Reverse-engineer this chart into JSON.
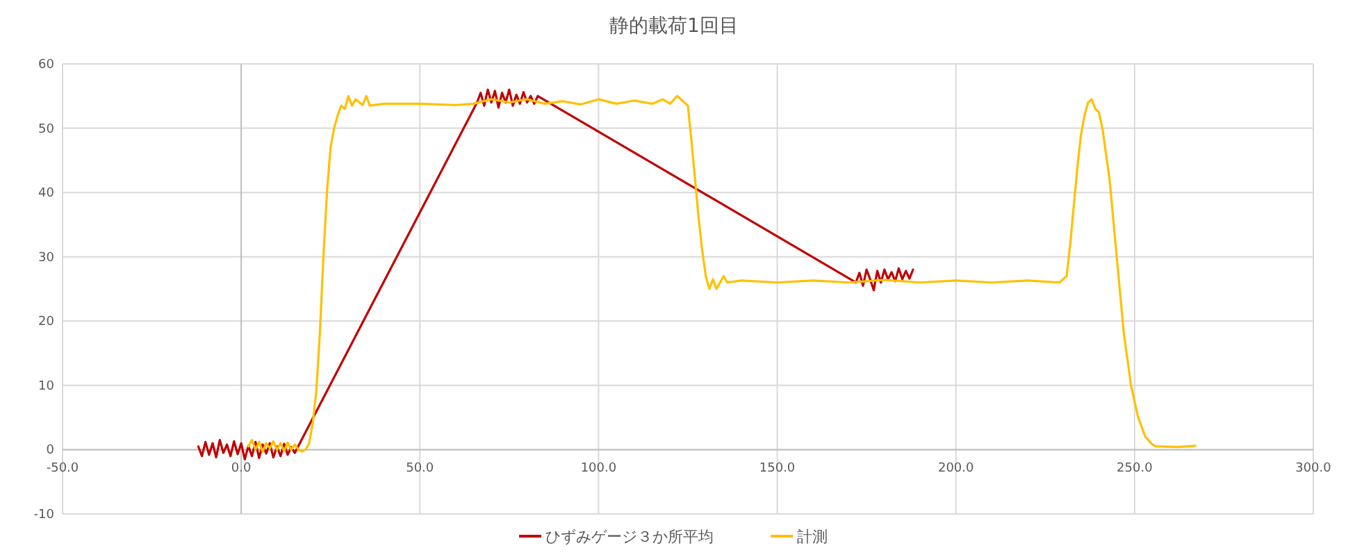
{
  "chart_data": {
    "type": "line",
    "title": "静的載荷1回目",
    "xlim": [
      -50,
      300
    ],
    "ylim": [
      -10,
      60
    ],
    "xticks": [
      {
        "value": -50,
        "label": "-50.0"
      },
      {
        "value": 0,
        "label": "0.0"
      },
      {
        "value": 50,
        "label": "50.0"
      },
      {
        "value": 100,
        "label": "100.0"
      },
      {
        "value": 150,
        "label": "150.0"
      },
      {
        "value": 200,
        "label": "200.0"
      },
      {
        "value": 250,
        "label": "250.0"
      },
      {
        "value": 300,
        "label": "300.0"
      }
    ],
    "yticks": [
      -10,
      0,
      10,
      20,
      30,
      40,
      50,
      60
    ],
    "grid": true,
    "legend": "bottom",
    "marker": "none",
    "line_style": "solid",
    "series": [
      {
        "name": "ひずみゲージ３か所平均",
        "color": "#c00000",
        "x": [
          -12,
          -11,
          -10,
          -9,
          -8,
          -7,
          -6,
          -5,
          -4,
          -3,
          -2,
          -1,
          0,
          1,
          2,
          3,
          4,
          5,
          6,
          7,
          8,
          9,
          10,
          11,
          12,
          13,
          14,
          15,
          66,
          67,
          68,
          69,
          70,
          71,
          72,
          73,
          74,
          75,
          76,
          77,
          78,
          79,
          80,
          81,
          82,
          83,
          172,
          173,
          174,
          175,
          176,
          177,
          178,
          179,
          180,
          181,
          182,
          183,
          184,
          185,
          186,
          187,
          188
        ],
        "values": [
          0.5,
          -1,
          1.2,
          -0.8,
          1,
          -1.2,
          1.5,
          -0.5,
          0.8,
          -1,
          1.3,
          -0.7,
          1,
          -1.5,
          0.6,
          -1,
          1.2,
          -1.3,
          0.8,
          -0.6,
          1,
          -1.2,
          0.5,
          -1,
          0.9,
          -0.8,
          0.4,
          -0.5,
          54,
          55.5,
          53.5,
          56,
          54,
          55.8,
          53.2,
          55.5,
          54,
          56,
          53.5,
          55.2,
          53.8,
          55.6,
          54,
          55,
          53.8,
          55,
          26,
          27.5,
          25.5,
          28,
          26.5,
          24.8,
          27.8,
          26,
          28,
          26.5,
          27.6,
          26.2,
          28.2,
          26.5,
          27.8,
          26.6,
          28
        ]
      },
      {
        "name": "計測",
        "color": "#ffc000",
        "x": [
          2,
          3,
          4,
          5,
          6,
          7,
          8,
          9,
          10,
          11,
          12,
          13,
          14,
          15,
          16,
          17,
          18,
          19,
          20,
          21,
          22,
          23,
          24,
          25,
          26,
          27,
          28,
          29,
          30,
          31,
          32,
          34,
          35,
          36,
          40,
          50,
          60,
          65,
          70,
          75,
          80,
          85,
          90,
          95,
          100,
          105,
          110,
          115,
          118,
          120,
          122,
          124,
          125,
          126,
          127,
          128,
          129,
          130,
          131,
          132,
          133,
          134,
          135,
          136,
          140,
          150,
          160,
          170,
          180,
          190,
          200,
          210,
          220,
          229,
          230,
          231,
          232,
          233,
          234,
          235,
          236,
          237,
          238,
          239,
          240,
          241,
          243,
          245,
          247,
          249,
          251,
          253,
          255,
          256,
          258,
          262,
          267
        ],
        "values": [
          0.5,
          1.5,
          0,
          1.2,
          -0.3,
          1,
          0.2,
          1.3,
          0,
          1,
          -0.2,
          1.1,
          0,
          0.8,
          0,
          -0.3,
          0,
          1,
          4,
          9,
          18,
          30,
          40,
          47,
          50,
          52,
          53.5,
          53,
          55,
          53.5,
          54.5,
          53.6,
          55,
          53.5,
          53.8,
          53.8,
          53.6,
          53.8,
          54.5,
          54,
          54.5,
          53.8,
          54.2,
          53.7,
          54.5,
          53.8,
          54.3,
          53.8,
          54.5,
          53.8,
          55,
          54,
          53.5,
          48,
          42,
          36,
          31,
          27,
          25,
          26.5,
          25,
          26,
          27,
          26,
          26.3,
          26,
          26.3,
          26,
          26.4,
          26,
          26.3,
          26,
          26.3,
          26,
          26.5,
          27,
          32,
          38,
          44,
          49,
          52,
          54,
          54.5,
          53,
          52.5,
          50,
          42,
          30,
          18,
          10,
          5,
          2,
          0.8,
          0.5,
          0.5,
          0.4,
          0.6
        ]
      }
    ]
  }
}
